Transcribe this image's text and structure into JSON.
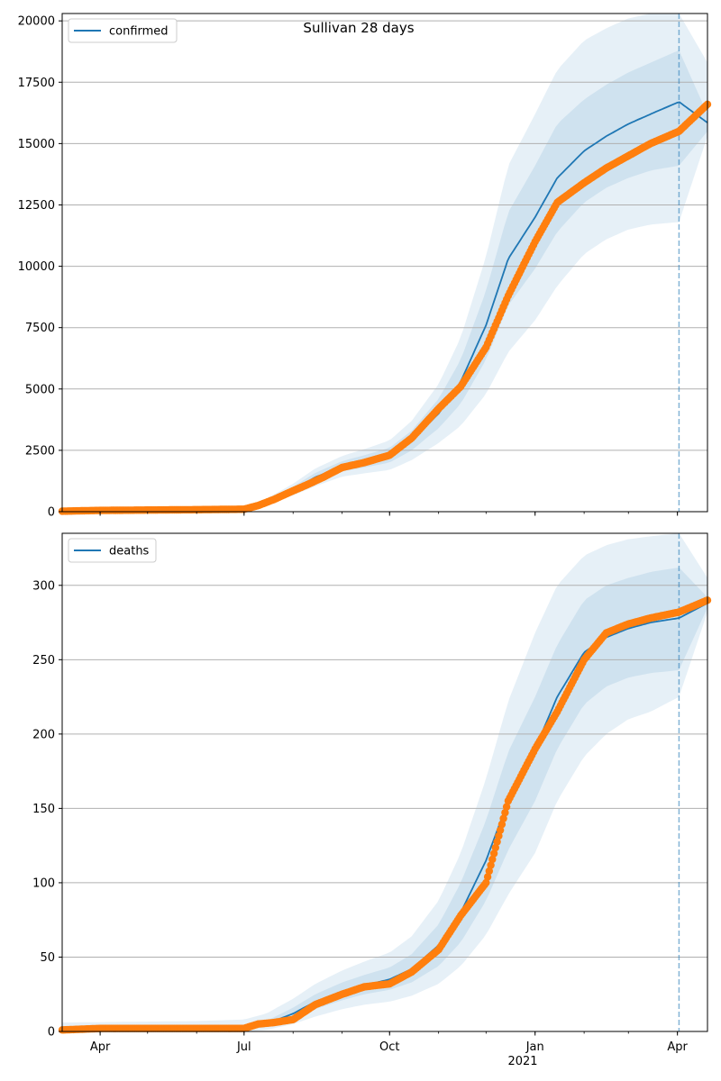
{
  "figure": {
    "title": "Sullivan 28 days",
    "year_label": "2021"
  },
  "colors": {
    "model_line": "#1f77b4",
    "observed": "#ff7f0e",
    "band": "#1f77b4",
    "grid": "#b0b0b0",
    "vline": "#1f77b4"
  },
  "chart_data": [
    {
      "type": "line",
      "legend": "confirmed",
      "legend_position": "top-left",
      "grid": "y",
      "xlim": [
        "2020-03-08",
        "2021-04-20"
      ],
      "ylim": [
        0,
        20300
      ],
      "yticks": [
        0,
        2500,
        5000,
        7500,
        10000,
        12500,
        15000,
        17500,
        20000
      ],
      "xticks": [
        {
          "date": "2020-04-01",
          "label": "Apr"
        },
        {
          "date": "2020-07-01",
          "label": "Jul"
        },
        {
          "date": "2020-10-01",
          "label": "Oct"
        },
        {
          "date": "2021-01-01",
          "label": "Jan"
        },
        {
          "date": "2021-04-01",
          "label": "Apr"
        }
      ],
      "forecast_start": "2021-04-02",
      "model": {
        "x": [
          "2020-03-08",
          "2020-06-01",
          "2020-07-01",
          "2020-07-15",
          "2020-08-01",
          "2020-08-15",
          "2020-09-01",
          "2020-09-15",
          "2020-10-01",
          "2020-10-15",
          "2020-11-01",
          "2020-11-15",
          "2020-12-01",
          "2020-12-15",
          "2021-01-01",
          "2021-01-15",
          "2021-02-01",
          "2021-02-15",
          "2021-03-01",
          "2021-03-15",
          "2021-04-02",
          "2021-04-20"
        ],
        "y": [
          50,
          90,
          110,
          400,
          900,
          1400,
          1850,
          2050,
          2300,
          2900,
          4000,
          5300,
          7600,
          10300,
          12000,
          13600,
          14700,
          15300,
          15800,
          16200,
          16700,
          15850
        ],
        "bands": [
          {
            "lower": [
              50,
              80,
              100,
              340,
              780,
              1220,
              1640,
              1800,
              2000,
              2500,
              3400,
              4400,
              6200,
              8400,
              9900,
              11400,
              12600,
              13200,
              13600,
              13900,
              14100,
              15500
            ],
            "upper": [
              60,
              100,
              120,
              460,
              1020,
              1580,
              2060,
              2300,
              2600,
              3300,
              4600,
              6200,
              9000,
              12200,
              14100,
              15800,
              16800,
              17400,
              17900,
              18300,
              18800,
              16200
            ]
          },
          {
            "lower": [
              40,
              70,
              90,
              280,
              660,
              1040,
              1430,
              1560,
              1700,
              2100,
              2800,
              3500,
              4800,
              6500,
              7800,
              9200,
              10500,
              11100,
              11500,
              11700,
              11800,
              15300
            ],
            "upper": [
              70,
              110,
              130,
              520,
              1140,
              1760,
              2270,
              2550,
              2900,
              3700,
              5200,
              7100,
              10400,
              14100,
              16200,
              18000,
              19200,
              19700,
              20100,
              20300,
              20300,
              18300
            ]
          }
        ]
      },
      "observed": {
        "x": [
          "2020-03-08",
          "2020-04-01",
          "2020-06-01",
          "2020-07-01",
          "2020-07-10",
          "2020-07-20",
          "2020-08-01",
          "2020-08-10",
          "2020-08-20",
          "2020-09-01",
          "2020-09-15",
          "2020-10-01",
          "2020-10-15",
          "2020-11-01",
          "2020-11-15",
          "2020-12-01",
          "2020-12-15",
          "2021-01-01",
          "2021-01-15",
          "2021-02-01",
          "2021-02-15",
          "2021-03-01",
          "2021-03-15",
          "2021-04-02",
          "2021-04-20"
        ],
        "y": [
          20,
          50,
          80,
          100,
          250,
          500,
          850,
          1100,
          1400,
          1800,
          2000,
          2300,
          3000,
          4200,
          5100,
          6700,
          8800,
          11000,
          12600,
          13400,
          14000,
          14500,
          15000,
          15500,
          16600
        ]
      }
    },
    {
      "type": "line",
      "legend": "deaths",
      "legend_position": "top-left",
      "grid": "y",
      "xlim": [
        "2020-03-08",
        "2021-04-20"
      ],
      "ylim": [
        0,
        335
      ],
      "yticks": [
        0,
        50,
        100,
        150,
        200,
        250,
        300
      ],
      "xticks": [
        {
          "date": "2020-04-01",
          "label": "Apr"
        },
        {
          "date": "2020-07-01",
          "label": "Jul"
        },
        {
          "date": "2020-10-01",
          "label": "Oct"
        },
        {
          "date": "2021-01-01",
          "label": "Jan"
        },
        {
          "date": "2021-04-01",
          "label": "Apr"
        }
      ],
      "forecast_start": "2021-04-02",
      "model": {
        "x": [
          "2020-03-08",
          "2020-06-01",
          "2020-07-01",
          "2020-07-15",
          "2020-08-01",
          "2020-08-15",
          "2020-09-01",
          "2020-09-15",
          "2020-10-01",
          "2020-10-15",
          "2020-11-01",
          "2020-11-15",
          "2020-12-01",
          "2020-12-15",
          "2021-01-01",
          "2021-01-15",
          "2021-02-01",
          "2021-02-15",
          "2021-03-01",
          "2021-03-15",
          "2021-04-02",
          "2021-04-20"
        ],
        "y": [
          1,
          2,
          2,
          5,
          12,
          20,
          27,
          31,
          35,
          42,
          58,
          80,
          115,
          155,
          190,
          225,
          255,
          265,
          271,
          275,
          278,
          288
        ],
        "bands": [
          {
            "lower": [
              1,
              1,
              1,
              3,
              8,
              15,
              21,
              25,
              28,
              33,
              44,
              60,
              88,
              122,
              155,
              190,
              220,
              232,
              238,
              241,
              243,
              285
            ],
            "upper": [
              2,
              3,
              3,
              7,
              16,
              25,
              33,
              38,
              43,
              52,
              72,
              100,
              142,
              188,
              225,
              260,
              290,
              300,
              305,
              309,
              312,
              292
            ]
          },
          {
            "lower": [
              0,
              0,
              0,
              1,
              5,
              10,
              15,
              18,
              20,
              24,
              32,
              44,
              65,
              92,
              120,
              155,
              185,
              200,
              210,
              215,
              225,
              282
            ],
            "upper": [
              6,
              7,
              8,
              12,
              22,
              32,
              41,
              47,
              53,
              64,
              88,
              120,
              170,
              222,
              268,
              300,
              320,
              327,
              331,
              333,
              335,
              305
            ]
          }
        ]
      },
      "observed": {
        "x": [
          "2020-03-08",
          "2020-04-01",
          "2020-06-01",
          "2020-07-01",
          "2020-07-10",
          "2020-07-20",
          "2020-08-01",
          "2020-08-15",
          "2020-09-01",
          "2020-09-15",
          "2020-10-01",
          "2020-10-15",
          "2020-11-01",
          "2020-11-15",
          "2020-12-01",
          "2020-12-15",
          "2021-01-01",
          "2021-01-15",
          "2021-02-01",
          "2021-02-15",
          "2021-03-01",
          "2021-03-15",
          "2021-04-02",
          "2021-04-20"
        ],
        "y": [
          1,
          2,
          2,
          2,
          5,
          6,
          8,
          18,
          25,
          30,
          32,
          40,
          55,
          78,
          100,
          155,
          190,
          215,
          250,
          268,
          274,
          278,
          282,
          290
        ]
      }
    }
  ]
}
